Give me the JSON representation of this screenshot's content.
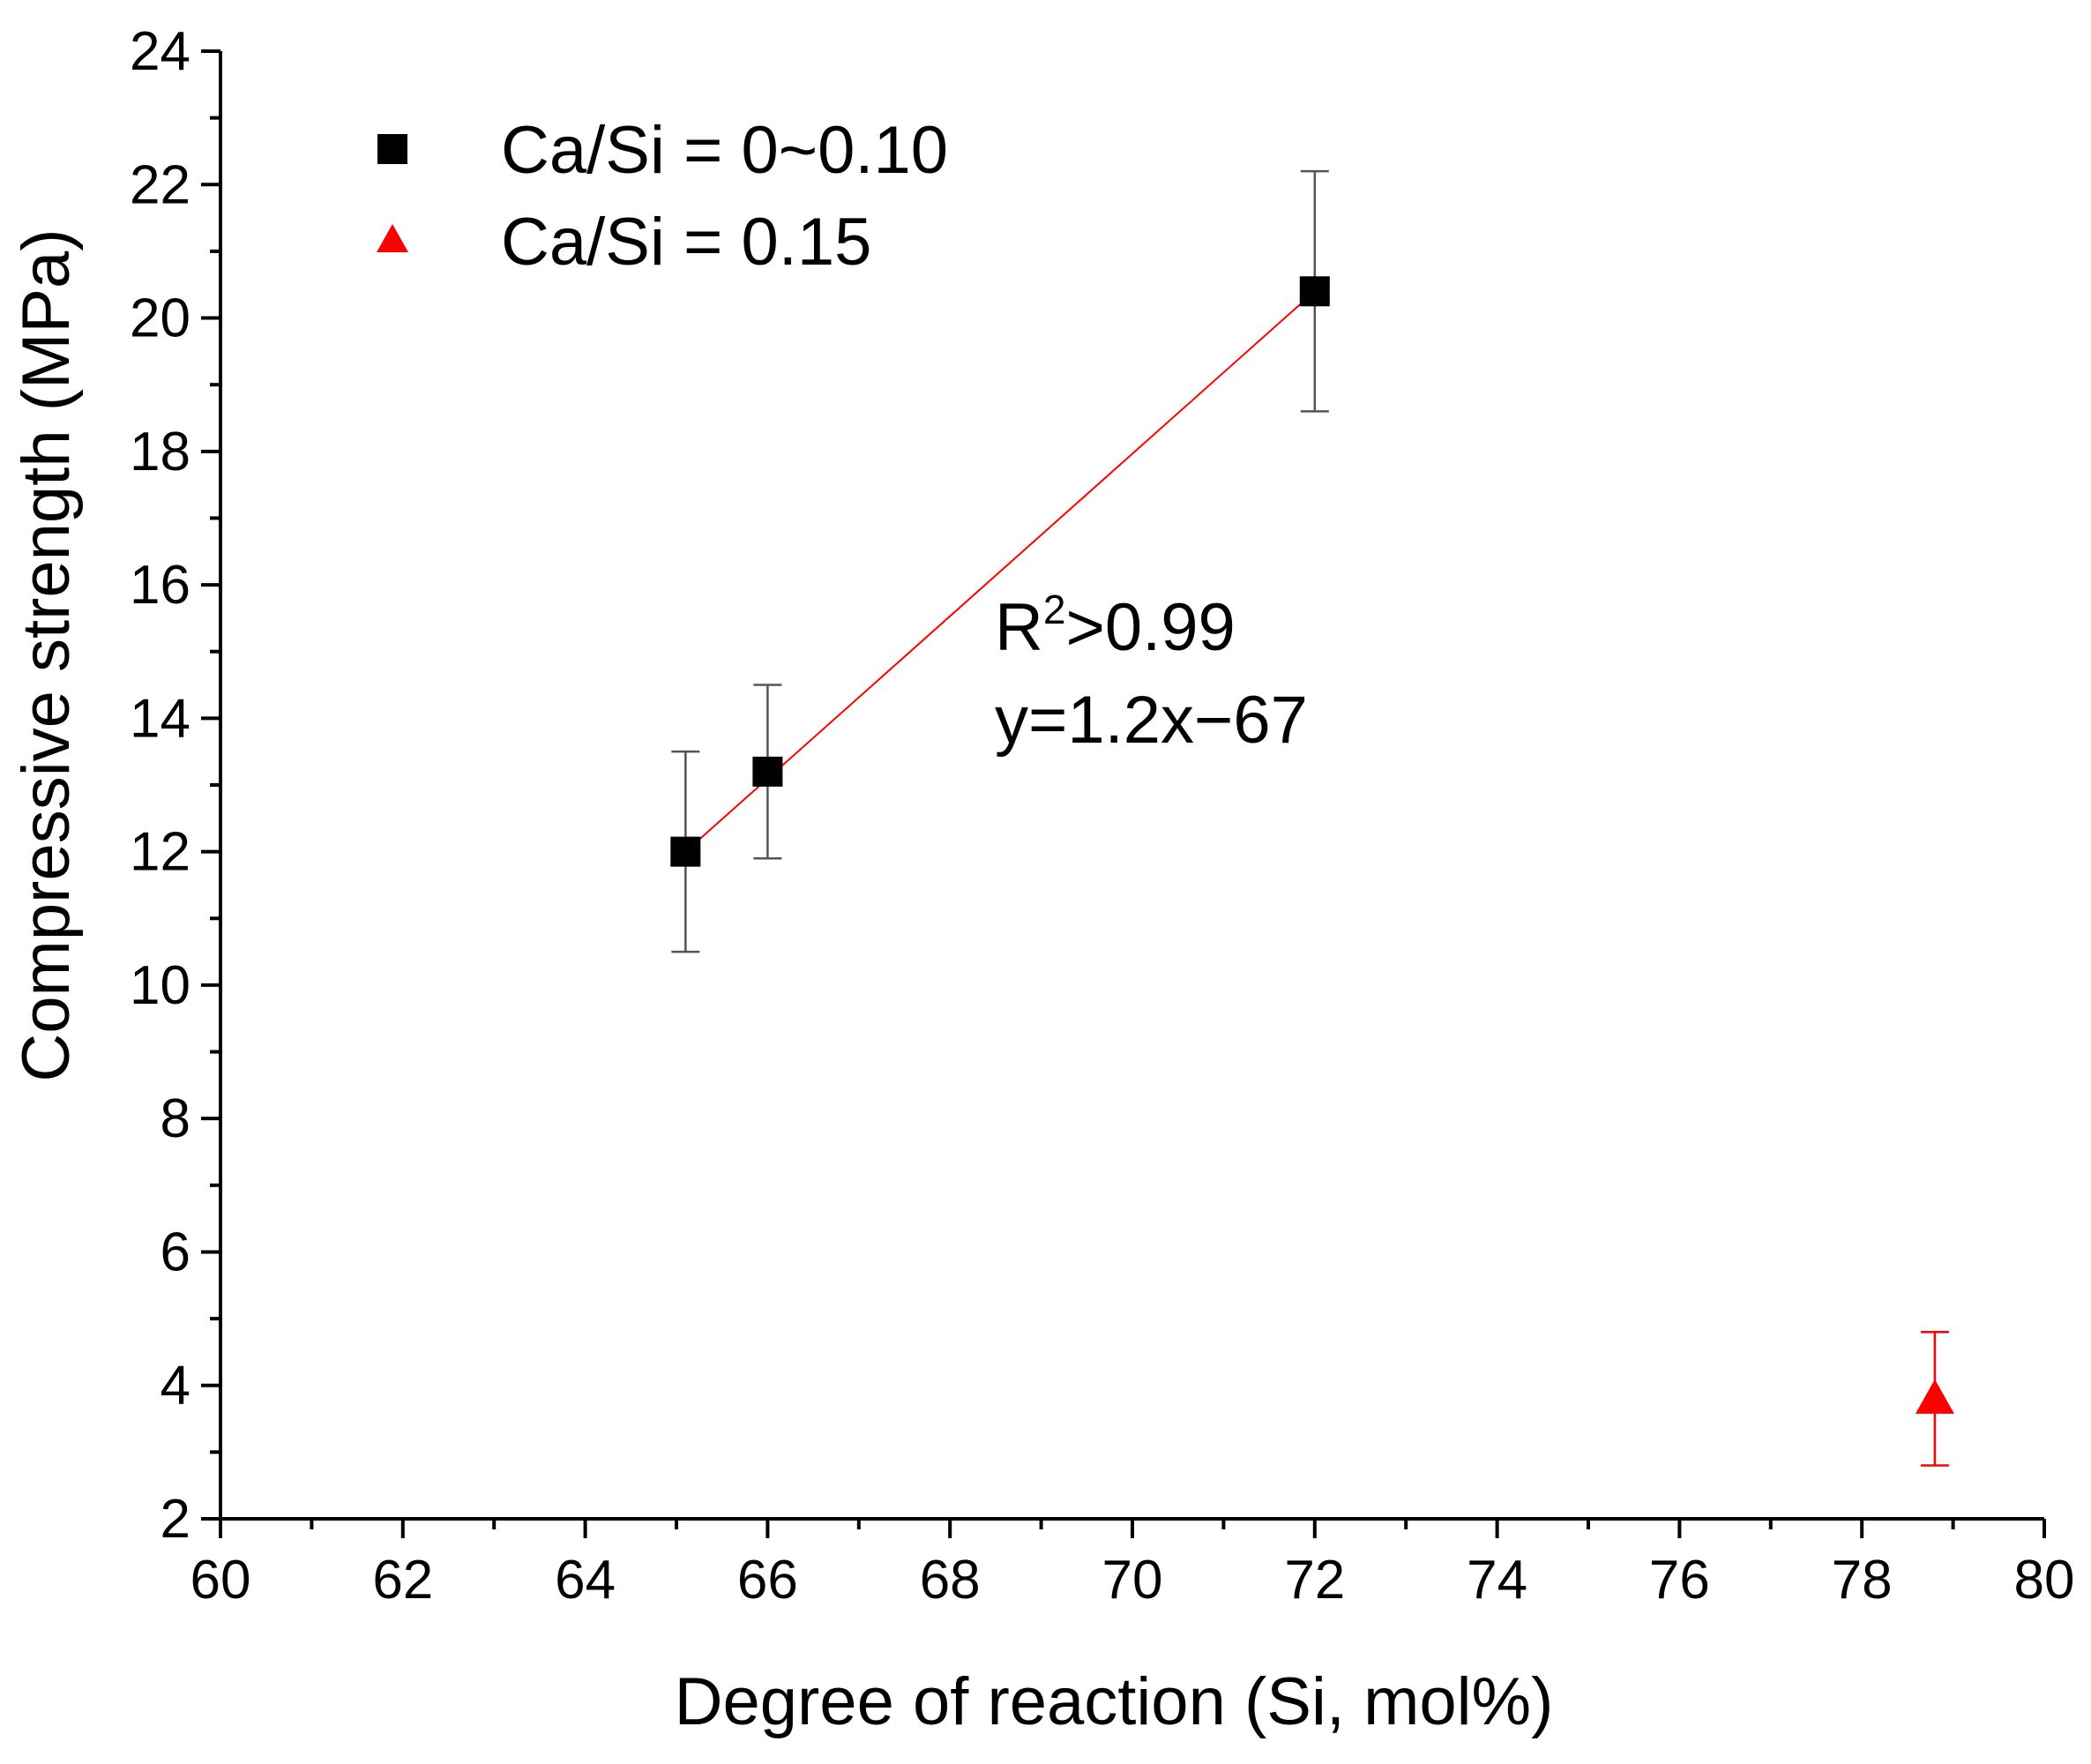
{
  "chart_data": {
    "type": "scatter",
    "title": "",
    "xlabel": "Degree of reaction (Si, mol%)",
    "ylabel": "Compressive strength (MPa)",
    "xlim": [
      60,
      80
    ],
    "ylim": [
      2,
      24
    ],
    "xticks": [
      60,
      62,
      64,
      66,
      68,
      70,
      72,
      74,
      76,
      78,
      80
    ],
    "yticks": [
      2,
      4,
      6,
      8,
      10,
      12,
      14,
      16,
      18,
      20,
      22,
      24
    ],
    "grid": false,
    "legend_position": "top-left",
    "series": [
      {
        "name": "Ca/Si = 0~0.10",
        "marker": "square",
        "color": "#000000",
        "points": [
          {
            "x": 65.1,
            "y": 12.0,
            "err": 1.5
          },
          {
            "x": 66.0,
            "y": 13.2,
            "err": 1.3
          },
          {
            "x": 72.0,
            "y": 20.4,
            "err": 1.8
          }
        ]
      },
      {
        "name": "Ca/Si = 0.15",
        "marker": "triangle",
        "color": "#ff0000",
        "points": [
          {
            "x": 78.8,
            "y": 3.8,
            "err": 1.0
          }
        ]
      }
    ],
    "fit": {
      "color": "#ff0000",
      "x_range": [
        65.1,
        72.0
      ],
      "slope": 1.2,
      "intercept": -67,
      "r2_label": "R",
      "r2_sup": "2",
      "r2_value": ">0.99",
      "equation": "y=1.2x−67"
    },
    "errorbar_color": "#555555"
  }
}
